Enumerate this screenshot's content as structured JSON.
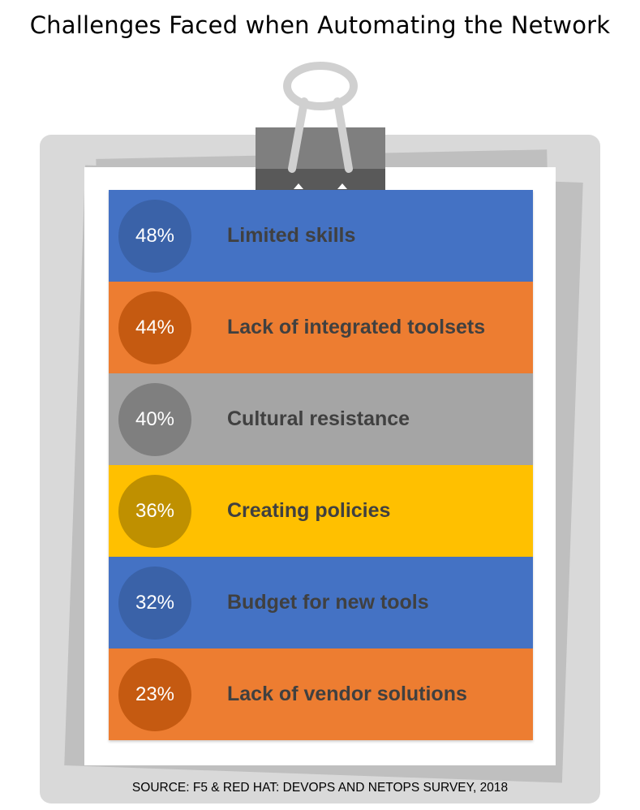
{
  "title": "Challenges Faced when Automating the Network",
  "source": "SOURCE: F5 & RED HAT: DEVOPS AND NETOPS SURVEY, 2018",
  "colors": {
    "blue": "#4472c4",
    "blue_circle": "#3a62a8",
    "orange": "#ed7d31",
    "orange_circle": "#c55a11",
    "gray": "#a5a5a5",
    "gray_circle": "#7f7f7f",
    "gold": "#ffc000",
    "gold_circle": "#bf9000"
  },
  "items": [
    {
      "percent": "48%",
      "label": "Limited skills",
      "color": "#4472c4",
      "circle": "#3a62a8"
    },
    {
      "percent": "44%",
      "label": "Lack of integrated toolsets",
      "color": "#ed7d31",
      "circle": "#c55a11"
    },
    {
      "percent": "40%",
      "label": "Cultural resistance",
      "color": "#a5a5a5",
      "circle": "#7f7f7f"
    },
    {
      "percent": "36%",
      "label": "Creating policies",
      "color": "#ffc000",
      "circle": "#bf9000"
    },
    {
      "percent": "32%",
      "label": "Budget for new tools",
      "color": "#4472c4",
      "circle": "#3a62a8"
    },
    {
      "percent": "23%",
      "label": "Lack of vendor solutions",
      "color": "#ed7d31",
      "circle": "#c55a11"
    }
  ]
}
